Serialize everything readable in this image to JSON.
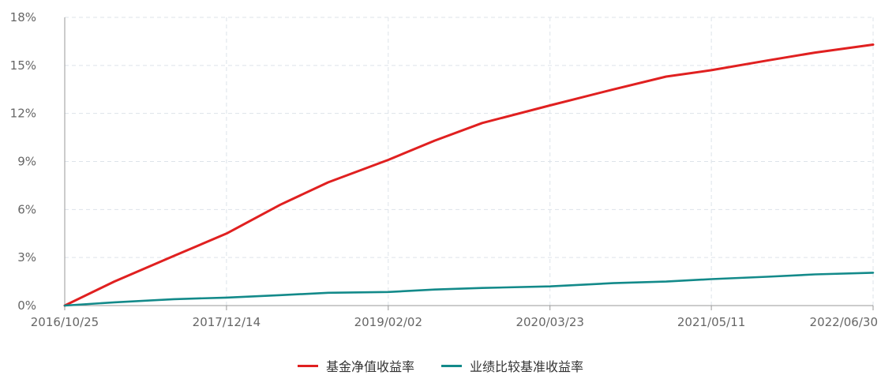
{
  "chart_data": {
    "type": "line",
    "x": [
      "2016/10/25",
      "2017/03/01",
      "2017/08/01",
      "2017/12/14",
      "2018/05/01",
      "2018/09/01",
      "2019/02/02",
      "2019/06/01",
      "2019/10/01",
      "2020/03/23",
      "2020/09/01",
      "2021/01/15",
      "2021/05/11",
      "2021/10/01",
      "2022/02/01",
      "2022/06/30"
    ],
    "xticks": [
      "2016/10/25",
      "2017/12/14",
      "2019/02/02",
      "2020/03/23",
      "2021/05/11",
      "2022/06/30"
    ],
    "yticks": [
      "0%",
      "3%",
      "6%",
      "9%",
      "12%",
      "15%",
      "18%"
    ],
    "ylim": [
      0,
      18
    ],
    "grid": true,
    "legend_position": "bottom",
    "series": [
      {
        "name": "基金净值收益率",
        "color": "#e02020",
        "values": [
          0,
          1.5,
          3.1,
          4.5,
          6.3,
          7.7,
          9.1,
          10.3,
          11.4,
          12.5,
          13.5,
          14.3,
          14.7,
          15.3,
          15.8,
          16.3
        ]
      },
      {
        "name": "业绩比较基准收益率",
        "color": "#138a8a",
        "values": [
          0,
          0.2,
          0.4,
          0.5,
          0.65,
          0.8,
          0.85,
          1.0,
          1.1,
          1.2,
          1.4,
          1.5,
          1.65,
          1.8,
          1.95,
          2.05
        ]
      }
    ]
  },
  "legend": {
    "item1_label": "基金净值收益率",
    "item2_label": "业绩比较基准收益率"
  }
}
